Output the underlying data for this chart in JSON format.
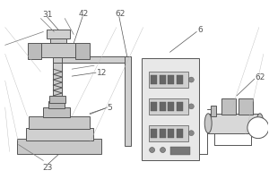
{
  "bg": "#ffffff",
  "lc": "#555555",
  "fc_light": "#e0e0e0",
  "fc_mid": "#cccccc",
  "fc_dark": "#aaaaaa",
  "fc_darker": "#888888",
  "lw": 0.7,
  "label_fs": 6.5
}
